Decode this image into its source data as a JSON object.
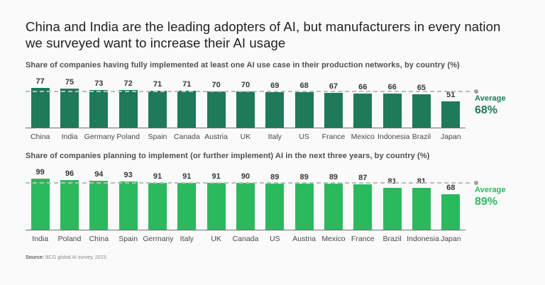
{
  "title": "China and India are the leading adopters of AI, but manufacturers in every nation we surveyed want to increase their AI usage",
  "source": {
    "label": "Source:",
    "text": " BCG global AI survey, 2023."
  },
  "colors": {
    "dark_green": "#1e7a58",
    "bright_green": "#2bb95e",
    "value_label": "#383838",
    "axis": "#6e6e6e",
    "dashed_line": "#bcbcbc",
    "dot": "#9e9e9e",
    "background": "#f9faf9"
  },
  "chart_data": [
    {
      "type": "bar",
      "subtitle": "Share of companies having fully implemented at least one AI use case in their production networks, by country (%)",
      "categories": [
        "China",
        "India",
        "Germany",
        "Poland",
        "Spain",
        "Canada",
        "Austria",
        "UK",
        "Italy",
        "US",
        "France",
        "Mexico",
        "Indonesia",
        "Brazil",
        "Japan"
      ],
      "values": [
        77,
        75,
        73,
        72,
        71,
        71,
        70,
        70,
        69,
        68,
        67,
        66,
        66,
        65,
        51
      ],
      "average": 68,
      "average_label": "Average",
      "average_value_label": "68%",
      "bar_color": "#1e7a58",
      "accent_color": "#1e7a58",
      "ylim": [
        0,
        100
      ],
      "grid": false,
      "value_labels": true,
      "legend_position": "right"
    },
    {
      "type": "bar",
      "subtitle": "Share of companies planning to implement (or further implement) AI in the next three years, by country (%)",
      "categories": [
        "India",
        "Poland",
        "China",
        "Spain",
        "Germany",
        "Italy",
        "UK",
        "Canada",
        "US",
        "Austria",
        "Mexico",
        "France",
        "Brazil",
        "Indonesia",
        "Japan"
      ],
      "values": [
        99,
        96,
        94,
        93,
        91,
        91,
        91,
        90,
        89,
        89,
        89,
        87,
        81,
        81,
        68
      ],
      "average": 89,
      "average_label": "Average",
      "average_value_label": "89%",
      "bar_color": "#2bb95e",
      "accent_color": "#2bb95e",
      "ylim": [
        0,
        100
      ],
      "grid": false,
      "value_labels": true,
      "legend_position": "right"
    }
  ]
}
